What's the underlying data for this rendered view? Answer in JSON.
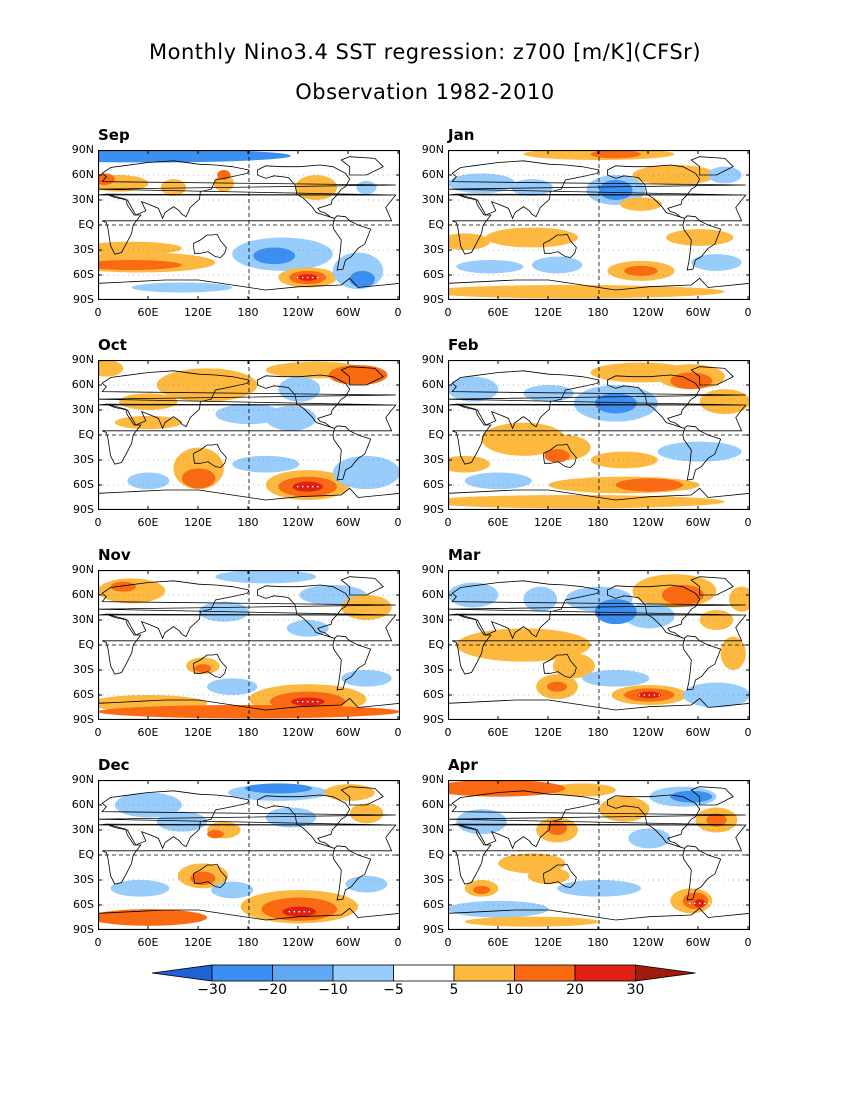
{
  "title_line1": "Monthly Nino3.4 SST regression: z700 [m/K](CFSr)",
  "title_line2": "Observation 1982-2010",
  "lat_labels": [
    "90N",
    "60N",
    "30N",
    "EQ",
    "30S",
    "60S",
    "90S"
  ],
  "lon_labels": [
    "0",
    "60E",
    "120E",
    "180",
    "120W",
    "60W",
    "0"
  ],
  "panels": [
    {
      "id": "sep",
      "month": "Sep",
      "blobs": [
        {
          "lon": 60,
          "lat": 83,
          "rx": 170,
          "ry": 8,
          "c": -2
        },
        {
          "lon": 25,
          "lat": 50,
          "rx": 35,
          "ry": 10,
          "c": 1
        },
        {
          "lon": 8,
          "lat": 55,
          "rx": 12,
          "ry": 7,
          "c": 2
        },
        {
          "lon": 90,
          "lat": 45,
          "rx": 15,
          "ry": 10,
          "c": 1
        },
        {
          "lon": 150,
          "lat": 60,
          "rx": 8,
          "ry": 6,
          "c": 2
        },
        {
          "lon": 150,
          "lat": 50,
          "rx": 12,
          "ry": 10,
          "c": 1
        },
        {
          "lon": 260,
          "lat": 45,
          "rx": 25,
          "ry": 15,
          "c": 1
        },
        {
          "lon": 320,
          "lat": 45,
          "rx": 12,
          "ry": 8,
          "c": -1
        },
        {
          "lon": 40,
          "lat": -28,
          "rx": 60,
          "ry": 8,
          "c": 1
        },
        {
          "lon": 50,
          "lat": -45,
          "rx": 90,
          "ry": 12,
          "c": 1
        },
        {
          "lon": 40,
          "lat": -48,
          "rx": 60,
          "ry": 6,
          "c": 2
        },
        {
          "lon": 220,
          "lat": -35,
          "rx": 60,
          "ry": 20,
          "c": -1
        },
        {
          "lon": 210,
          "lat": -37,
          "rx": 25,
          "ry": 10,
          "c": -2
        },
        {
          "lon": 250,
          "lat": -63,
          "rx": 35,
          "ry": 12,
          "c": 1
        },
        {
          "lon": 250,
          "lat": -63,
          "rx": 22,
          "ry": 8,
          "c": 2
        },
        {
          "lon": 250,
          "lat": -63,
          "rx": 12,
          "ry": 4,
          "c": 3
        },
        {
          "lon": 310,
          "lat": -55,
          "rx": 30,
          "ry": 22,
          "c": -1
        },
        {
          "lon": 315,
          "lat": -65,
          "rx": 15,
          "ry": 10,
          "c": -2
        },
        {
          "lon": 100,
          "lat": -75,
          "rx": 60,
          "ry": 6,
          "c": -1
        }
      ]
    },
    {
      "id": "jan",
      "month": "Jan",
      "blobs": [
        {
          "lon": 180,
          "lat": 85,
          "rx": 90,
          "ry": 7,
          "c": 1
        },
        {
          "lon": 200,
          "lat": 85,
          "rx": 30,
          "ry": 5,
          "c": 2
        },
        {
          "lon": 40,
          "lat": 50,
          "rx": 40,
          "ry": 12,
          "c": -1
        },
        {
          "lon": 100,
          "lat": 45,
          "rx": 25,
          "ry": 10,
          "c": -1
        },
        {
          "lon": 200,
          "lat": 42,
          "rx": 35,
          "ry": 18,
          "c": -1
        },
        {
          "lon": 200,
          "lat": 42,
          "rx": 20,
          "ry": 12,
          "c": -2
        },
        {
          "lon": 270,
          "lat": 60,
          "rx": 50,
          "ry": 12,
          "c": 1
        },
        {
          "lon": 330,
          "lat": 60,
          "rx": 20,
          "ry": 10,
          "c": -1
        },
        {
          "lon": 230,
          "lat": 25,
          "rx": 25,
          "ry": 8,
          "c": 1
        },
        {
          "lon": 100,
          "lat": -15,
          "rx": 55,
          "ry": 12,
          "c": 1
        },
        {
          "lon": 20,
          "lat": -20,
          "rx": 30,
          "ry": 10,
          "c": 1
        },
        {
          "lon": 300,
          "lat": -15,
          "rx": 40,
          "ry": 10,
          "c": 1
        },
        {
          "lon": 50,
          "lat": -50,
          "rx": 40,
          "ry": 8,
          "c": -1
        },
        {
          "lon": 130,
          "lat": -48,
          "rx": 30,
          "ry": 10,
          "c": -1
        },
        {
          "lon": 230,
          "lat": -55,
          "rx": 40,
          "ry": 12,
          "c": 1
        },
        {
          "lon": 230,
          "lat": -55,
          "rx": 20,
          "ry": 6,
          "c": 2
        },
        {
          "lon": 320,
          "lat": -45,
          "rx": 30,
          "ry": 10,
          "c": -1
        },
        {
          "lon": 150,
          "lat": -80,
          "rx": 180,
          "ry": 8,
          "c": 1
        }
      ]
    },
    {
      "id": "oct",
      "month": "Oct",
      "blobs": [
        {
          "lon": 10,
          "lat": 80,
          "rx": 20,
          "ry": 10,
          "c": 1
        },
        {
          "lon": 130,
          "lat": 60,
          "rx": 60,
          "ry": 20,
          "c": 1
        },
        {
          "lon": 260,
          "lat": 78,
          "rx": 60,
          "ry": 10,
          "c": 1
        },
        {
          "lon": 310,
          "lat": 72,
          "rx": 35,
          "ry": 12,
          "c": 2
        },
        {
          "lon": 240,
          "lat": 55,
          "rx": 25,
          "ry": 15,
          "c": -1
        },
        {
          "lon": 180,
          "lat": 25,
          "rx": 40,
          "ry": 12,
          "c": -1
        },
        {
          "lon": 60,
          "lat": 40,
          "rx": 35,
          "ry": 10,
          "c": 1
        },
        {
          "lon": 60,
          "lat": 15,
          "rx": 40,
          "ry": 8,
          "c": 1
        },
        {
          "lon": 230,
          "lat": 20,
          "rx": 30,
          "ry": 15,
          "c": -1
        },
        {
          "lon": 120,
          "lat": -40,
          "rx": 30,
          "ry": 25,
          "c": 1
        },
        {
          "lon": 120,
          "lat": -52,
          "rx": 20,
          "ry": 12,
          "c": 2
        },
        {
          "lon": 200,
          "lat": -35,
          "rx": 40,
          "ry": 10,
          "c": -1
        },
        {
          "lon": 250,
          "lat": -60,
          "rx": 50,
          "ry": 18,
          "c": 1
        },
        {
          "lon": 250,
          "lat": -62,
          "rx": 35,
          "ry": 12,
          "c": 2
        },
        {
          "lon": 250,
          "lat": -62,
          "rx": 18,
          "ry": 6,
          "c": 3
        },
        {
          "lon": 320,
          "lat": -45,
          "rx": 40,
          "ry": 20,
          "c": -1
        },
        {
          "lon": 60,
          "lat": -55,
          "rx": 25,
          "ry": 10,
          "c": -1
        }
      ]
    },
    {
      "id": "feb",
      "month": "Feb",
      "blobs": [
        {
          "lon": 230,
          "lat": 75,
          "rx": 60,
          "ry": 12,
          "c": 1
        },
        {
          "lon": 290,
          "lat": 70,
          "rx": 40,
          "ry": 15,
          "c": 1
        },
        {
          "lon": 290,
          "lat": 65,
          "rx": 25,
          "ry": 10,
          "c": 2
        },
        {
          "lon": 30,
          "lat": 55,
          "rx": 30,
          "ry": 15,
          "c": -1
        },
        {
          "lon": 200,
          "lat": 38,
          "rx": 50,
          "ry": 22,
          "c": -1
        },
        {
          "lon": 200,
          "lat": 38,
          "rx": 25,
          "ry": 12,
          "c": -2
        },
        {
          "lon": 120,
          "lat": 50,
          "rx": 30,
          "ry": 10,
          "c": -1
        },
        {
          "lon": 330,
          "lat": 40,
          "rx": 30,
          "ry": 15,
          "c": 1
        },
        {
          "lon": 90,
          "lat": -5,
          "rx": 50,
          "ry": 20,
          "c": 1
        },
        {
          "lon": 140,
          "lat": -15,
          "rx": 30,
          "ry": 15,
          "c": 1
        },
        {
          "lon": 130,
          "lat": -25,
          "rx": 15,
          "ry": 8,
          "c": 2
        },
        {
          "lon": 300,
          "lat": -20,
          "rx": 50,
          "ry": 12,
          "c": -1
        },
        {
          "lon": 20,
          "lat": -35,
          "rx": 30,
          "ry": 10,
          "c": 1
        },
        {
          "lon": 210,
          "lat": -30,
          "rx": 40,
          "ry": 10,
          "c": 1
        },
        {
          "lon": 210,
          "lat": -60,
          "rx": 90,
          "ry": 10,
          "c": 1
        },
        {
          "lon": 240,
          "lat": -60,
          "rx": 40,
          "ry": 8,
          "c": 2
        },
        {
          "lon": 60,
          "lat": -55,
          "rx": 40,
          "ry": 10,
          "c": -1
        },
        {
          "lon": 150,
          "lat": -80,
          "rx": 180,
          "ry": 8,
          "c": 1
        }
      ]
    },
    {
      "id": "nov",
      "month": "Nov",
      "blobs": [
        {
          "lon": 40,
          "lat": 65,
          "rx": 40,
          "ry": 15,
          "c": 1
        },
        {
          "lon": 30,
          "lat": 70,
          "rx": 15,
          "ry": 6,
          "c": 2
        },
        {
          "lon": 200,
          "lat": 82,
          "rx": 60,
          "ry": 8,
          "c": -1
        },
        {
          "lon": 280,
          "lat": 60,
          "rx": 40,
          "ry": 12,
          "c": -1
        },
        {
          "lon": 150,
          "lat": 40,
          "rx": 30,
          "ry": 12,
          "c": -1
        },
        {
          "lon": 320,
          "lat": 45,
          "rx": 30,
          "ry": 15,
          "c": 1
        },
        {
          "lon": 250,
          "lat": 20,
          "rx": 25,
          "ry": 10,
          "c": -1
        },
        {
          "lon": 125,
          "lat": -25,
          "rx": 20,
          "ry": 10,
          "c": 1
        },
        {
          "lon": 125,
          "lat": -28,
          "rx": 10,
          "ry": 5,
          "c": 2
        },
        {
          "lon": 160,
          "lat": -50,
          "rx": 30,
          "ry": 10,
          "c": -1
        },
        {
          "lon": 250,
          "lat": -65,
          "rx": 70,
          "ry": 18,
          "c": 1
        },
        {
          "lon": 250,
          "lat": -68,
          "rx": 45,
          "ry": 12,
          "c": 2
        },
        {
          "lon": 250,
          "lat": -68,
          "rx": 20,
          "ry": 5,
          "c": 3
        },
        {
          "lon": 180,
          "lat": -80,
          "rx": 180,
          "ry": 8,
          "c": 2
        },
        {
          "lon": 60,
          "lat": -70,
          "rx": 70,
          "ry": 10,
          "c": 1
        },
        {
          "lon": 320,
          "lat": -40,
          "rx": 30,
          "ry": 10,
          "c": -1
        }
      ]
    },
    {
      "id": "mar",
      "month": "Mar",
      "blobs": [
        {
          "lon": 270,
          "lat": 65,
          "rx": 50,
          "ry": 20,
          "c": 1
        },
        {
          "lon": 280,
          "lat": 60,
          "rx": 25,
          "ry": 12,
          "c": 2
        },
        {
          "lon": 350,
          "lat": 55,
          "rx": 15,
          "ry": 15,
          "c": 1
        },
        {
          "lon": 30,
          "lat": 60,
          "rx": 30,
          "ry": 15,
          "c": -1
        },
        {
          "lon": 110,
          "lat": 55,
          "rx": 20,
          "ry": 15,
          "c": -1
        },
        {
          "lon": 180,
          "lat": 55,
          "rx": 40,
          "ry": 15,
          "c": -1
        },
        {
          "lon": 200,
          "lat": 40,
          "rx": 25,
          "ry": 15,
          "c": -2
        },
        {
          "lon": 240,
          "lat": 35,
          "rx": 30,
          "ry": 15,
          "c": -1
        },
        {
          "lon": 320,
          "lat": 30,
          "rx": 20,
          "ry": 12,
          "c": 1
        },
        {
          "lon": 90,
          "lat": 0,
          "rx": 80,
          "ry": 20,
          "c": 1
        },
        {
          "lon": 150,
          "lat": -25,
          "rx": 25,
          "ry": 15,
          "c": 1
        },
        {
          "lon": 130,
          "lat": -50,
          "rx": 25,
          "ry": 15,
          "c": 1
        },
        {
          "lon": 130,
          "lat": -50,
          "rx": 12,
          "ry": 6,
          "c": 2
        },
        {
          "lon": 200,
          "lat": -40,
          "rx": 40,
          "ry": 10,
          "c": -1
        },
        {
          "lon": 240,
          "lat": -60,
          "rx": 45,
          "ry": 12,
          "c": 1
        },
        {
          "lon": 240,
          "lat": -60,
          "rx": 30,
          "ry": 8,
          "c": 2
        },
        {
          "lon": 240,
          "lat": -60,
          "rx": 14,
          "ry": 4,
          "c": 3
        },
        {
          "lon": 320,
          "lat": -60,
          "rx": 40,
          "ry": 15,
          "c": -1
        },
        {
          "lon": 340,
          "lat": -10,
          "rx": 15,
          "ry": 20,
          "c": 1
        }
      ]
    },
    {
      "id": "dec",
      "month": "Dec",
      "blobs": [
        {
          "lon": 60,
          "lat": 60,
          "rx": 40,
          "ry": 15,
          "c": -1
        },
        {
          "lon": 100,
          "lat": 40,
          "rx": 30,
          "ry": 12,
          "c": -1
        },
        {
          "lon": 215,
          "lat": 75,
          "rx": 60,
          "ry": 10,
          "c": -1
        },
        {
          "lon": 215,
          "lat": 80,
          "rx": 40,
          "ry": 6,
          "c": -2
        },
        {
          "lon": 230,
          "lat": 45,
          "rx": 30,
          "ry": 12,
          "c": -1
        },
        {
          "lon": 300,
          "lat": 75,
          "rx": 30,
          "ry": 10,
          "c": 1
        },
        {
          "lon": 320,
          "lat": 50,
          "rx": 20,
          "ry": 12,
          "c": 1
        },
        {
          "lon": 150,
          "lat": 30,
          "rx": 20,
          "ry": 10,
          "c": 1
        },
        {
          "lon": 140,
          "lat": 25,
          "rx": 10,
          "ry": 5,
          "c": 2
        },
        {
          "lon": 125,
          "lat": -25,
          "rx": 30,
          "ry": 15,
          "c": 1
        },
        {
          "lon": 125,
          "lat": -28,
          "rx": 15,
          "ry": 8,
          "c": 2
        },
        {
          "lon": 50,
          "lat": -40,
          "rx": 35,
          "ry": 10,
          "c": -1
        },
        {
          "lon": 240,
          "lat": -62,
          "rx": 70,
          "ry": 20,
          "c": 1
        },
        {
          "lon": 240,
          "lat": -65,
          "rx": 45,
          "ry": 14,
          "c": 2
        },
        {
          "lon": 240,
          "lat": -68,
          "rx": 20,
          "ry": 6,
          "c": 3
        },
        {
          "lon": 60,
          "lat": -75,
          "rx": 70,
          "ry": 10,
          "c": 2
        },
        {
          "lon": 160,
          "lat": -42,
          "rx": 25,
          "ry": 10,
          "c": -1
        },
        {
          "lon": 320,
          "lat": -35,
          "rx": 25,
          "ry": 10,
          "c": -1
        }
      ]
    },
    {
      "id": "apr",
      "month": "Apr",
      "blobs": [
        {
          "lon": 60,
          "lat": 80,
          "rx": 80,
          "ry": 10,
          "c": 2
        },
        {
          "lon": 160,
          "lat": 78,
          "rx": 40,
          "ry": 8,
          "c": 1
        },
        {
          "lon": 280,
          "lat": 70,
          "rx": 40,
          "ry": 12,
          "c": -1
        },
        {
          "lon": 290,
          "lat": 70,
          "rx": 25,
          "ry": 7,
          "c": -2
        },
        {
          "lon": 320,
          "lat": 42,
          "rx": 25,
          "ry": 15,
          "c": 1
        },
        {
          "lon": 320,
          "lat": 42,
          "rx": 12,
          "ry": 8,
          "c": 2
        },
        {
          "lon": 40,
          "lat": 40,
          "rx": 30,
          "ry": 15,
          "c": -1
        },
        {
          "lon": 130,
          "lat": 30,
          "rx": 25,
          "ry": 15,
          "c": 1
        },
        {
          "lon": 130,
          "lat": 32,
          "rx": 12,
          "ry": 8,
          "c": 2
        },
        {
          "lon": 210,
          "lat": 55,
          "rx": 30,
          "ry": 15,
          "c": 1
        },
        {
          "lon": 240,
          "lat": 20,
          "rx": 25,
          "ry": 12,
          "c": -1
        },
        {
          "lon": 100,
          "lat": -10,
          "rx": 40,
          "ry": 12,
          "c": 1
        },
        {
          "lon": 120,
          "lat": -25,
          "rx": 25,
          "ry": 10,
          "c": 1
        },
        {
          "lon": 40,
          "lat": -40,
          "rx": 20,
          "ry": 10,
          "c": 1
        },
        {
          "lon": 40,
          "lat": -42,
          "rx": 10,
          "ry": 5,
          "c": 2
        },
        {
          "lon": 180,
          "lat": -40,
          "rx": 50,
          "ry": 10,
          "c": -1
        },
        {
          "lon": 290,
          "lat": -55,
          "rx": 25,
          "ry": 15,
          "c": 1
        },
        {
          "lon": 295,
          "lat": -55,
          "rx": 15,
          "ry": 10,
          "c": 2
        },
        {
          "lon": 300,
          "lat": -58,
          "rx": 7,
          "ry": 5,
          "c": 3
        },
        {
          "lon": 60,
          "lat": -65,
          "rx": 60,
          "ry": 10,
          "c": -1
        },
        {
          "lon": 100,
          "lat": -80,
          "rx": 80,
          "ry": 6,
          "c": 1
        }
      ]
    }
  ],
  "colorbar": {
    "labels": [
      "-30",
      "-20",
      "-10",
      "-5",
      "5",
      "10",
      "20",
      "30"
    ],
    "colors": [
      "#1f62d6",
      "#3a8ff0",
      "#5ea8f5",
      "#97ccfb",
      "#ffffff",
      "#fdb93f",
      "#f96a12",
      "#e02012",
      "#a11a0e"
    ]
  },
  "class_colors": {
    "-3": "#1f62d6",
    "-2": "#3a8ff0",
    "-1": "#97ccfb",
    "1": "#fdb93f",
    "2": "#f96a12",
    "3": "#e02012"
  }
}
